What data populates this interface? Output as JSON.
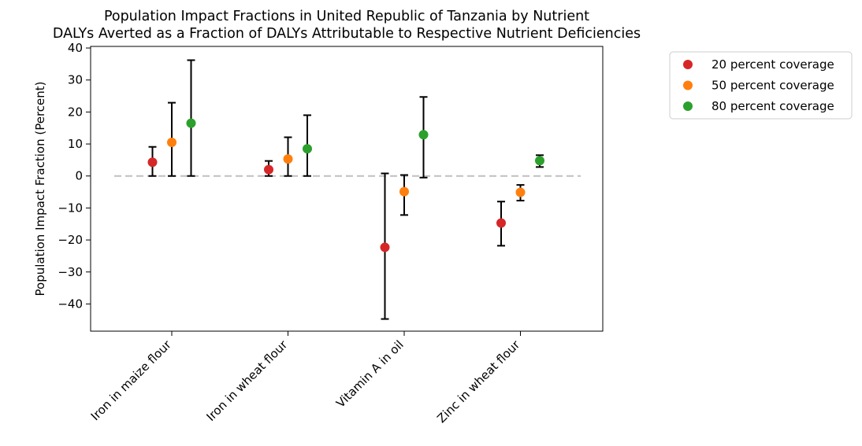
{
  "chart_data": {
    "type": "scatter",
    "title": "Population Impact Fractions in United Republic of Tanzania by Nutrient",
    "subtitle": "DALYs Averted as a Fraction of DALYs Attributable to Respective Nutrient Deficiencies",
    "xlabel": "",
    "ylabel": "Population Impact Fraction (Percent)",
    "ylim": [
      -48.5,
      40.5
    ],
    "yticks": [
      -40,
      -30,
      -20,
      -10,
      0,
      10,
      20,
      30,
      40
    ],
    "categories": [
      "Iron in maize flour",
      "Iron in wheat flour",
      "Vitamin A in oil",
      "Zinc in wheat flour"
    ],
    "reference_line": 0,
    "grid": false,
    "legend_position": "outside-top-right",
    "series": [
      {
        "name": "20 percent coverage",
        "color": "#d62728",
        "values": [
          4.3,
          2.0,
          -22.3,
          -14.7
        ],
        "lower": [
          0.0,
          0.0,
          -44.7,
          -21.8
        ],
        "upper": [
          9.1,
          4.7,
          0.8,
          -8.0
        ]
      },
      {
        "name": "50 percent coverage",
        "color": "#ff7f0e",
        "values": [
          10.5,
          5.3,
          -4.9,
          -5.1
        ],
        "lower": [
          0.0,
          0.0,
          -12.2,
          -7.7
        ],
        "upper": [
          22.9,
          12.1,
          0.3,
          -2.8
        ]
      },
      {
        "name": "80 percent coverage",
        "color": "#2ca02c",
        "values": [
          16.5,
          8.5,
          12.9,
          4.8
        ],
        "lower": [
          0.0,
          0.0,
          -0.5,
          2.8
        ],
        "upper": [
          36.2,
          19.0,
          24.7,
          6.5
        ]
      }
    ]
  }
}
